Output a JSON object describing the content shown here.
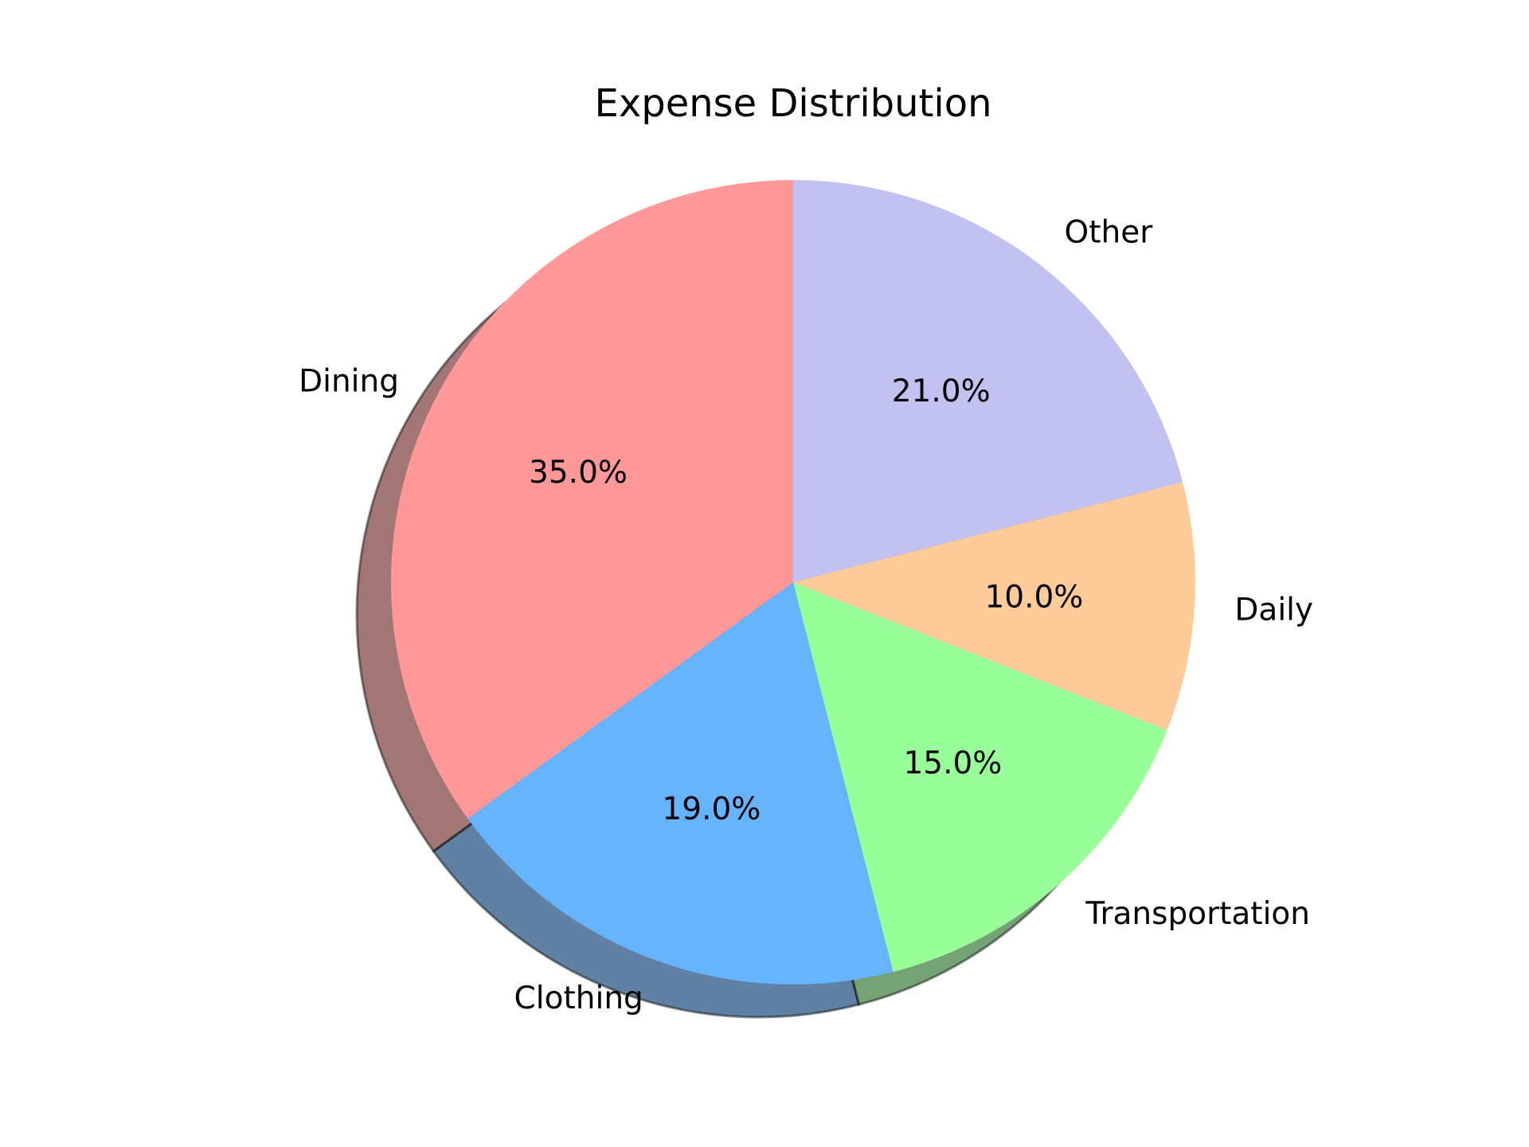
{
  "chart_data": {
    "type": "pie",
    "title": "Expense Distribution",
    "categories": [
      "Dining",
      "Clothing",
      "Transportation",
      "Daily",
      "Other"
    ],
    "values": [
      35.0,
      19.0,
      15.0,
      10.0,
      21.0
    ],
    "percent_labels": [
      "35.0%",
      "19.0%",
      "15.0%",
      "10.0%",
      "21.0%"
    ],
    "colors": [
      "#ff9999",
      "#66b3ff",
      "#99ff99",
      "#ffcc99",
      "#c2c2f0"
    ],
    "start_angle_deg": 90,
    "direction": "counterclockwise",
    "shadow": true,
    "legend": "none"
  }
}
